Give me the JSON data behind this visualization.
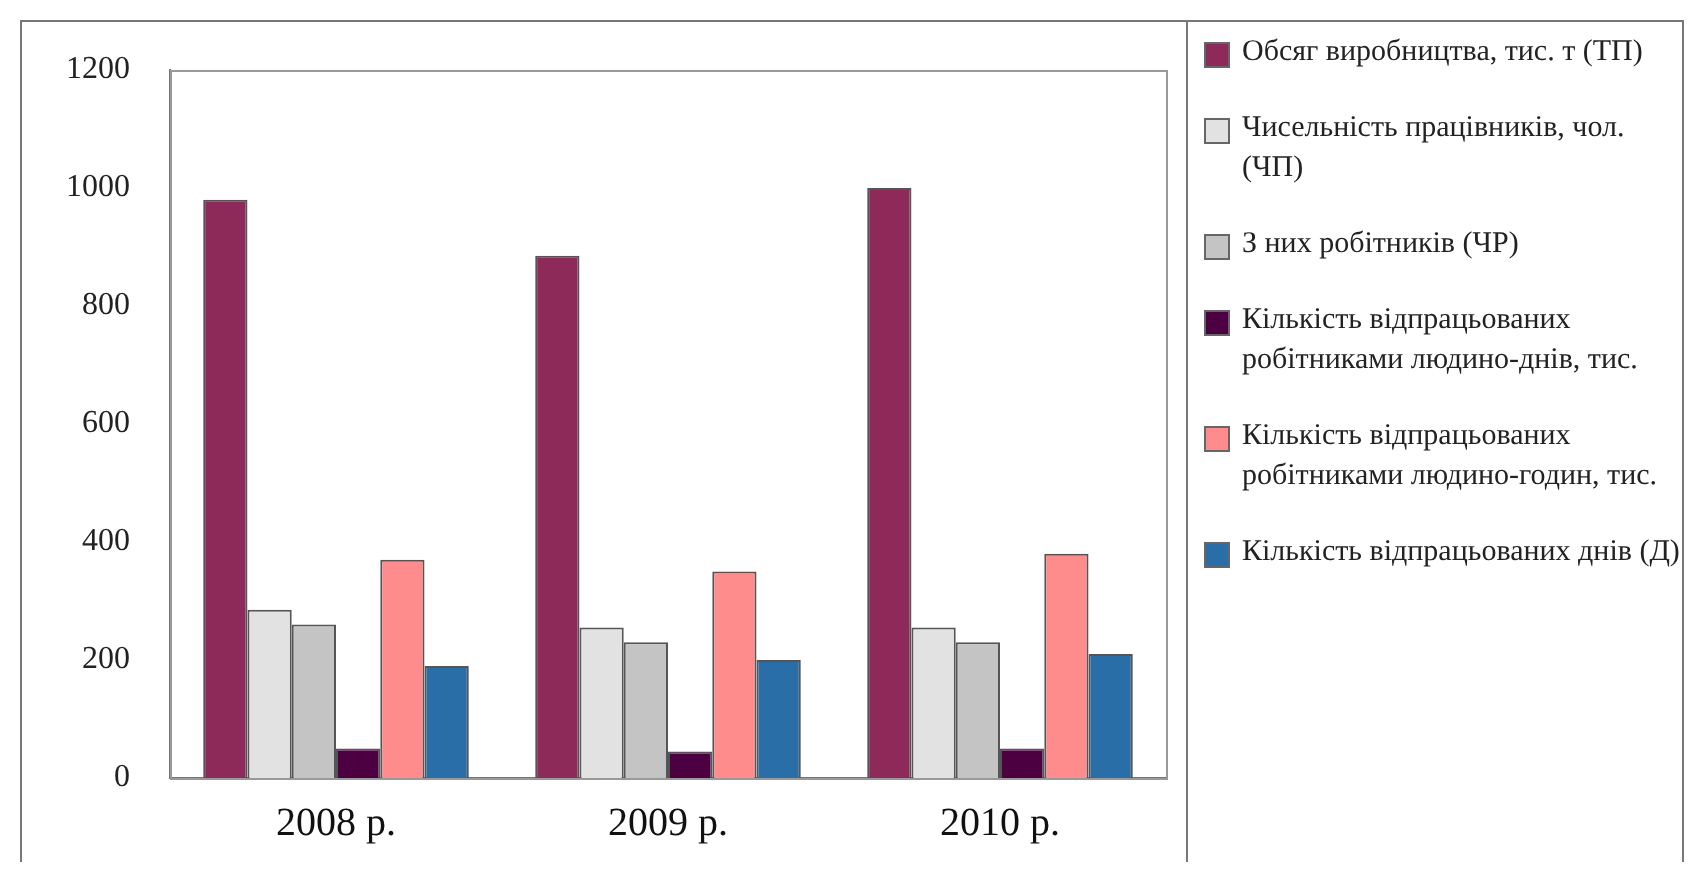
{
  "chart_data": {
    "type": "bar",
    "categories": [
      "2008 р.",
      "2009 р.",
      "2010 р."
    ],
    "series": [
      {
        "name": "Обсяг виробництва, тис. т (ТП)",
        "color": "#8e2a5a",
        "values": [
          980,
          885,
          1000
        ]
      },
      {
        "name": "Чисельність працівників, чол. (ЧП)",
        "color": "#e2e2e2",
        "values": [
          285,
          255,
          255
        ]
      },
      {
        "name": "З них робітників (ЧР)",
        "color": "#c4c4c4",
        "values": [
          260,
          230,
          230
        ]
      },
      {
        "name": "Кількість відпрацьованих робітниками людино-днів, тис.",
        "color": "#4d0041",
        "values": [
          50,
          45,
          50
        ]
      },
      {
        "name": "Кількість відпрацьованих робітниками людино-годин, тис.",
        "color": "#ff8c8c",
        "values": [
          370,
          350,
          380
        ]
      },
      {
        "name": "Кількість відпрацьованих днів (Д)",
        "color": "#2a6ea8",
        "values": [
          190,
          200,
          210
        ]
      }
    ],
    "ylim": [
      0,
      1200
    ],
    "yticks": [
      0,
      200,
      400,
      600,
      800,
      1000,
      1200
    ],
    "grid": false,
    "legend": "right"
  }
}
